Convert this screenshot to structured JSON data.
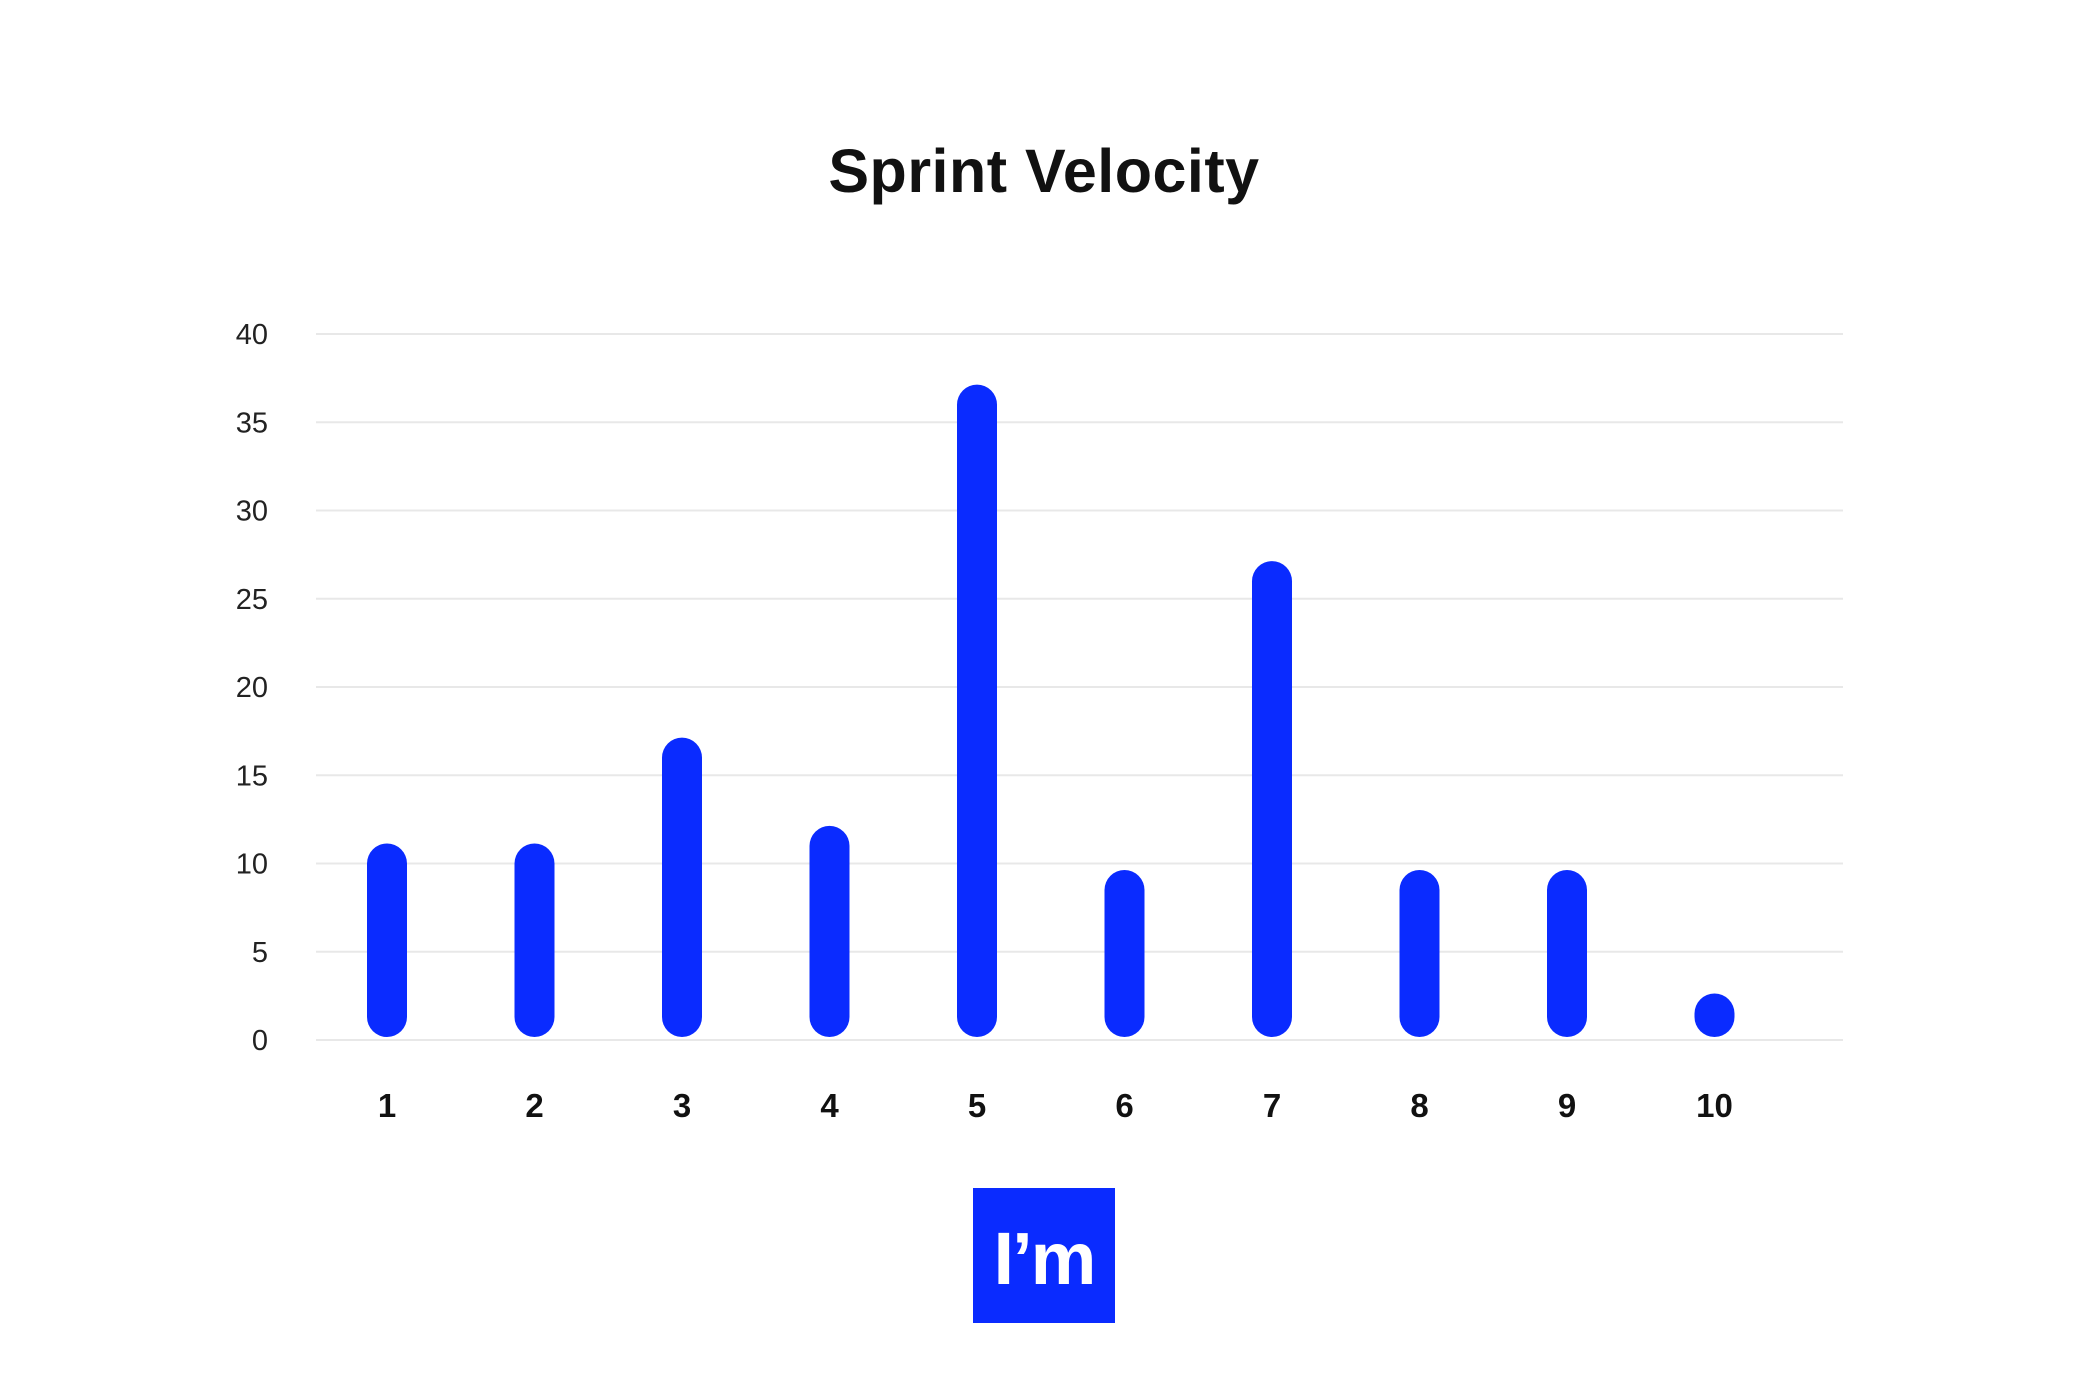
{
  "chart_data": {
    "type": "bar",
    "title": "Sprint Velocity",
    "xlabel": "",
    "ylabel": "",
    "categories": [
      "1",
      "2",
      "3",
      "4",
      "5",
      "6",
      "7",
      "8",
      "9",
      "10"
    ],
    "values": [
      10,
      10,
      16,
      11,
      36,
      8.5,
      26,
      8.5,
      8.5,
      1.5
    ],
    "ylim": [
      0,
      40
    ],
    "yticks": [
      0,
      5,
      10,
      15,
      20,
      25,
      30,
      35,
      40
    ],
    "grid": true,
    "legend": "none",
    "bar_color": "#0a2bff",
    "grid_color": "#e8e8e8"
  },
  "logo": {
    "text": "I’m",
    "color": "#0a2bff"
  }
}
